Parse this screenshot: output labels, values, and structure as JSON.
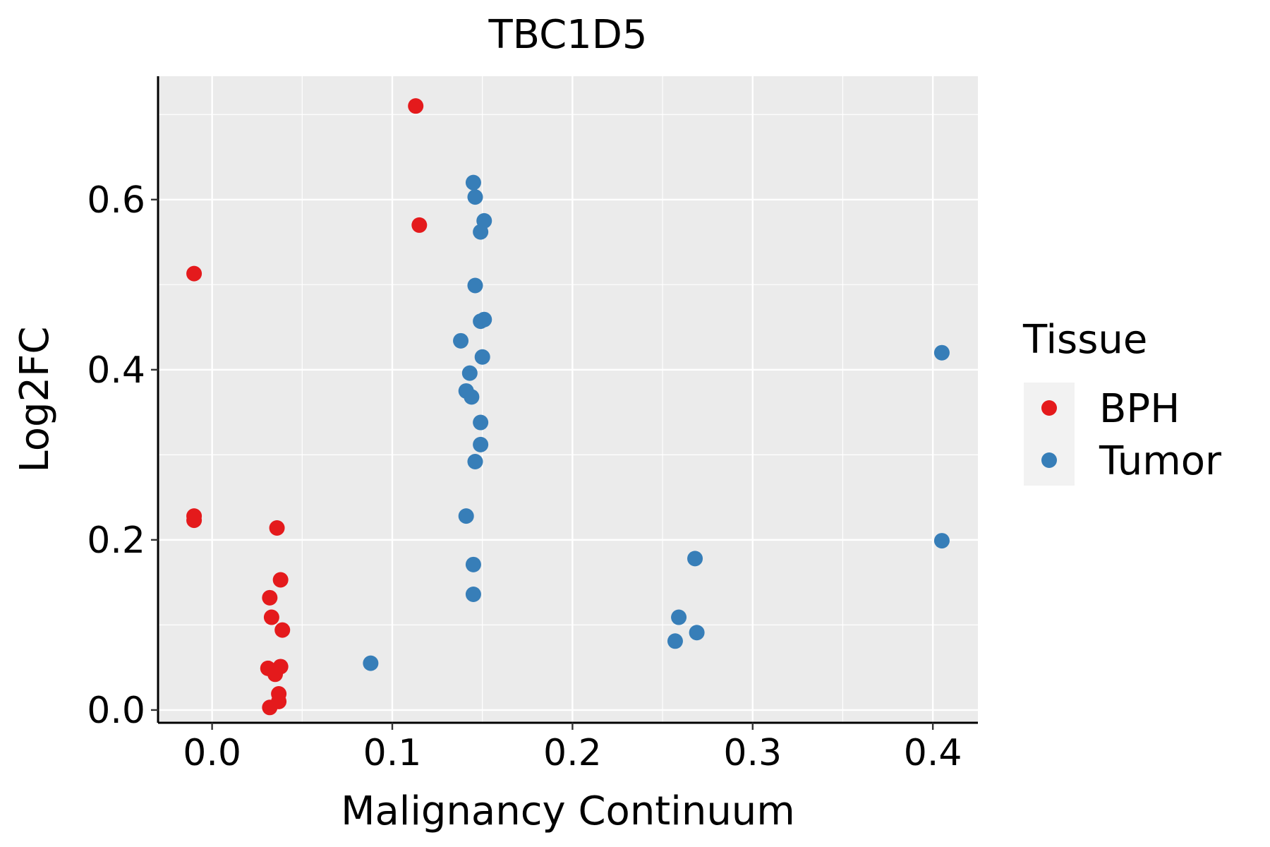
{
  "chart_data": {
    "type": "scatter",
    "title": "TBC1D5",
    "xlabel": "Malignancy Continuum",
    "ylabel": "Log2FC",
    "xlim": [
      -0.03,
      0.425
    ],
    "ylim": [
      -0.015,
      0.745
    ],
    "x_ticks": [
      0.0,
      0.1,
      0.2,
      0.3,
      0.4
    ],
    "x_tick_labels": [
      "0.0",
      "0.1",
      "0.2",
      "0.3",
      "0.4"
    ],
    "y_ticks": [
      0.0,
      0.2,
      0.4,
      0.6
    ],
    "y_tick_labels": [
      "0.0",
      "0.2",
      "0.4",
      "0.6"
    ],
    "grid": true,
    "legend": {
      "title": "Tissue",
      "position": "right",
      "entries": [
        {
          "label": "BPH",
          "color": "#e41a1c"
        },
        {
          "label": "Tumor",
          "color": "#377eb8"
        }
      ]
    },
    "series": [
      {
        "name": "BPH",
        "color": "#e41a1c",
        "points": [
          {
            "x": 0.113,
            "y": 0.71
          },
          {
            "x": 0.115,
            "y": 0.57
          },
          {
            "x": -0.01,
            "y": 0.513
          },
          {
            "x": -0.01,
            "y": 0.228
          },
          {
            "x": -0.01,
            "y": 0.223
          },
          {
            "x": 0.036,
            "y": 0.214
          },
          {
            "x": 0.038,
            "y": 0.153
          },
          {
            "x": 0.032,
            "y": 0.132
          },
          {
            "x": 0.033,
            "y": 0.109
          },
          {
            "x": 0.039,
            "y": 0.094
          },
          {
            "x": 0.038,
            "y": 0.051
          },
          {
            "x": 0.031,
            "y": 0.049
          },
          {
            "x": 0.035,
            "y": 0.042
          },
          {
            "x": 0.037,
            "y": 0.019
          },
          {
            "x": 0.037,
            "y": 0.01
          },
          {
            "x": 0.032,
            "y": 0.003
          }
        ]
      },
      {
        "name": "Tumor",
        "color": "#377eb8",
        "points": [
          {
            "x": 0.145,
            "y": 0.62
          },
          {
            "x": 0.146,
            "y": 0.603
          },
          {
            "x": 0.151,
            "y": 0.575
          },
          {
            "x": 0.149,
            "y": 0.562
          },
          {
            "x": 0.146,
            "y": 0.499
          },
          {
            "x": 0.151,
            "y": 0.459
          },
          {
            "x": 0.149,
            "y": 0.457
          },
          {
            "x": 0.138,
            "y": 0.434
          },
          {
            "x": 0.15,
            "y": 0.415
          },
          {
            "x": 0.143,
            "y": 0.396
          },
          {
            "x": 0.141,
            "y": 0.375
          },
          {
            "x": 0.144,
            "y": 0.368
          },
          {
            "x": 0.149,
            "y": 0.338
          },
          {
            "x": 0.149,
            "y": 0.312
          },
          {
            "x": 0.146,
            "y": 0.292
          },
          {
            "x": 0.141,
            "y": 0.228
          },
          {
            "x": 0.145,
            "y": 0.171
          },
          {
            "x": 0.145,
            "y": 0.136
          },
          {
            "x": 0.088,
            "y": 0.055
          },
          {
            "x": 0.268,
            "y": 0.178
          },
          {
            "x": 0.259,
            "y": 0.109
          },
          {
            "x": 0.269,
            "y": 0.091
          },
          {
            "x": 0.257,
            "y": 0.081
          },
          {
            "x": 0.405,
            "y": 0.42
          },
          {
            "x": 0.405,
            "y": 0.199
          }
        ]
      }
    ]
  }
}
